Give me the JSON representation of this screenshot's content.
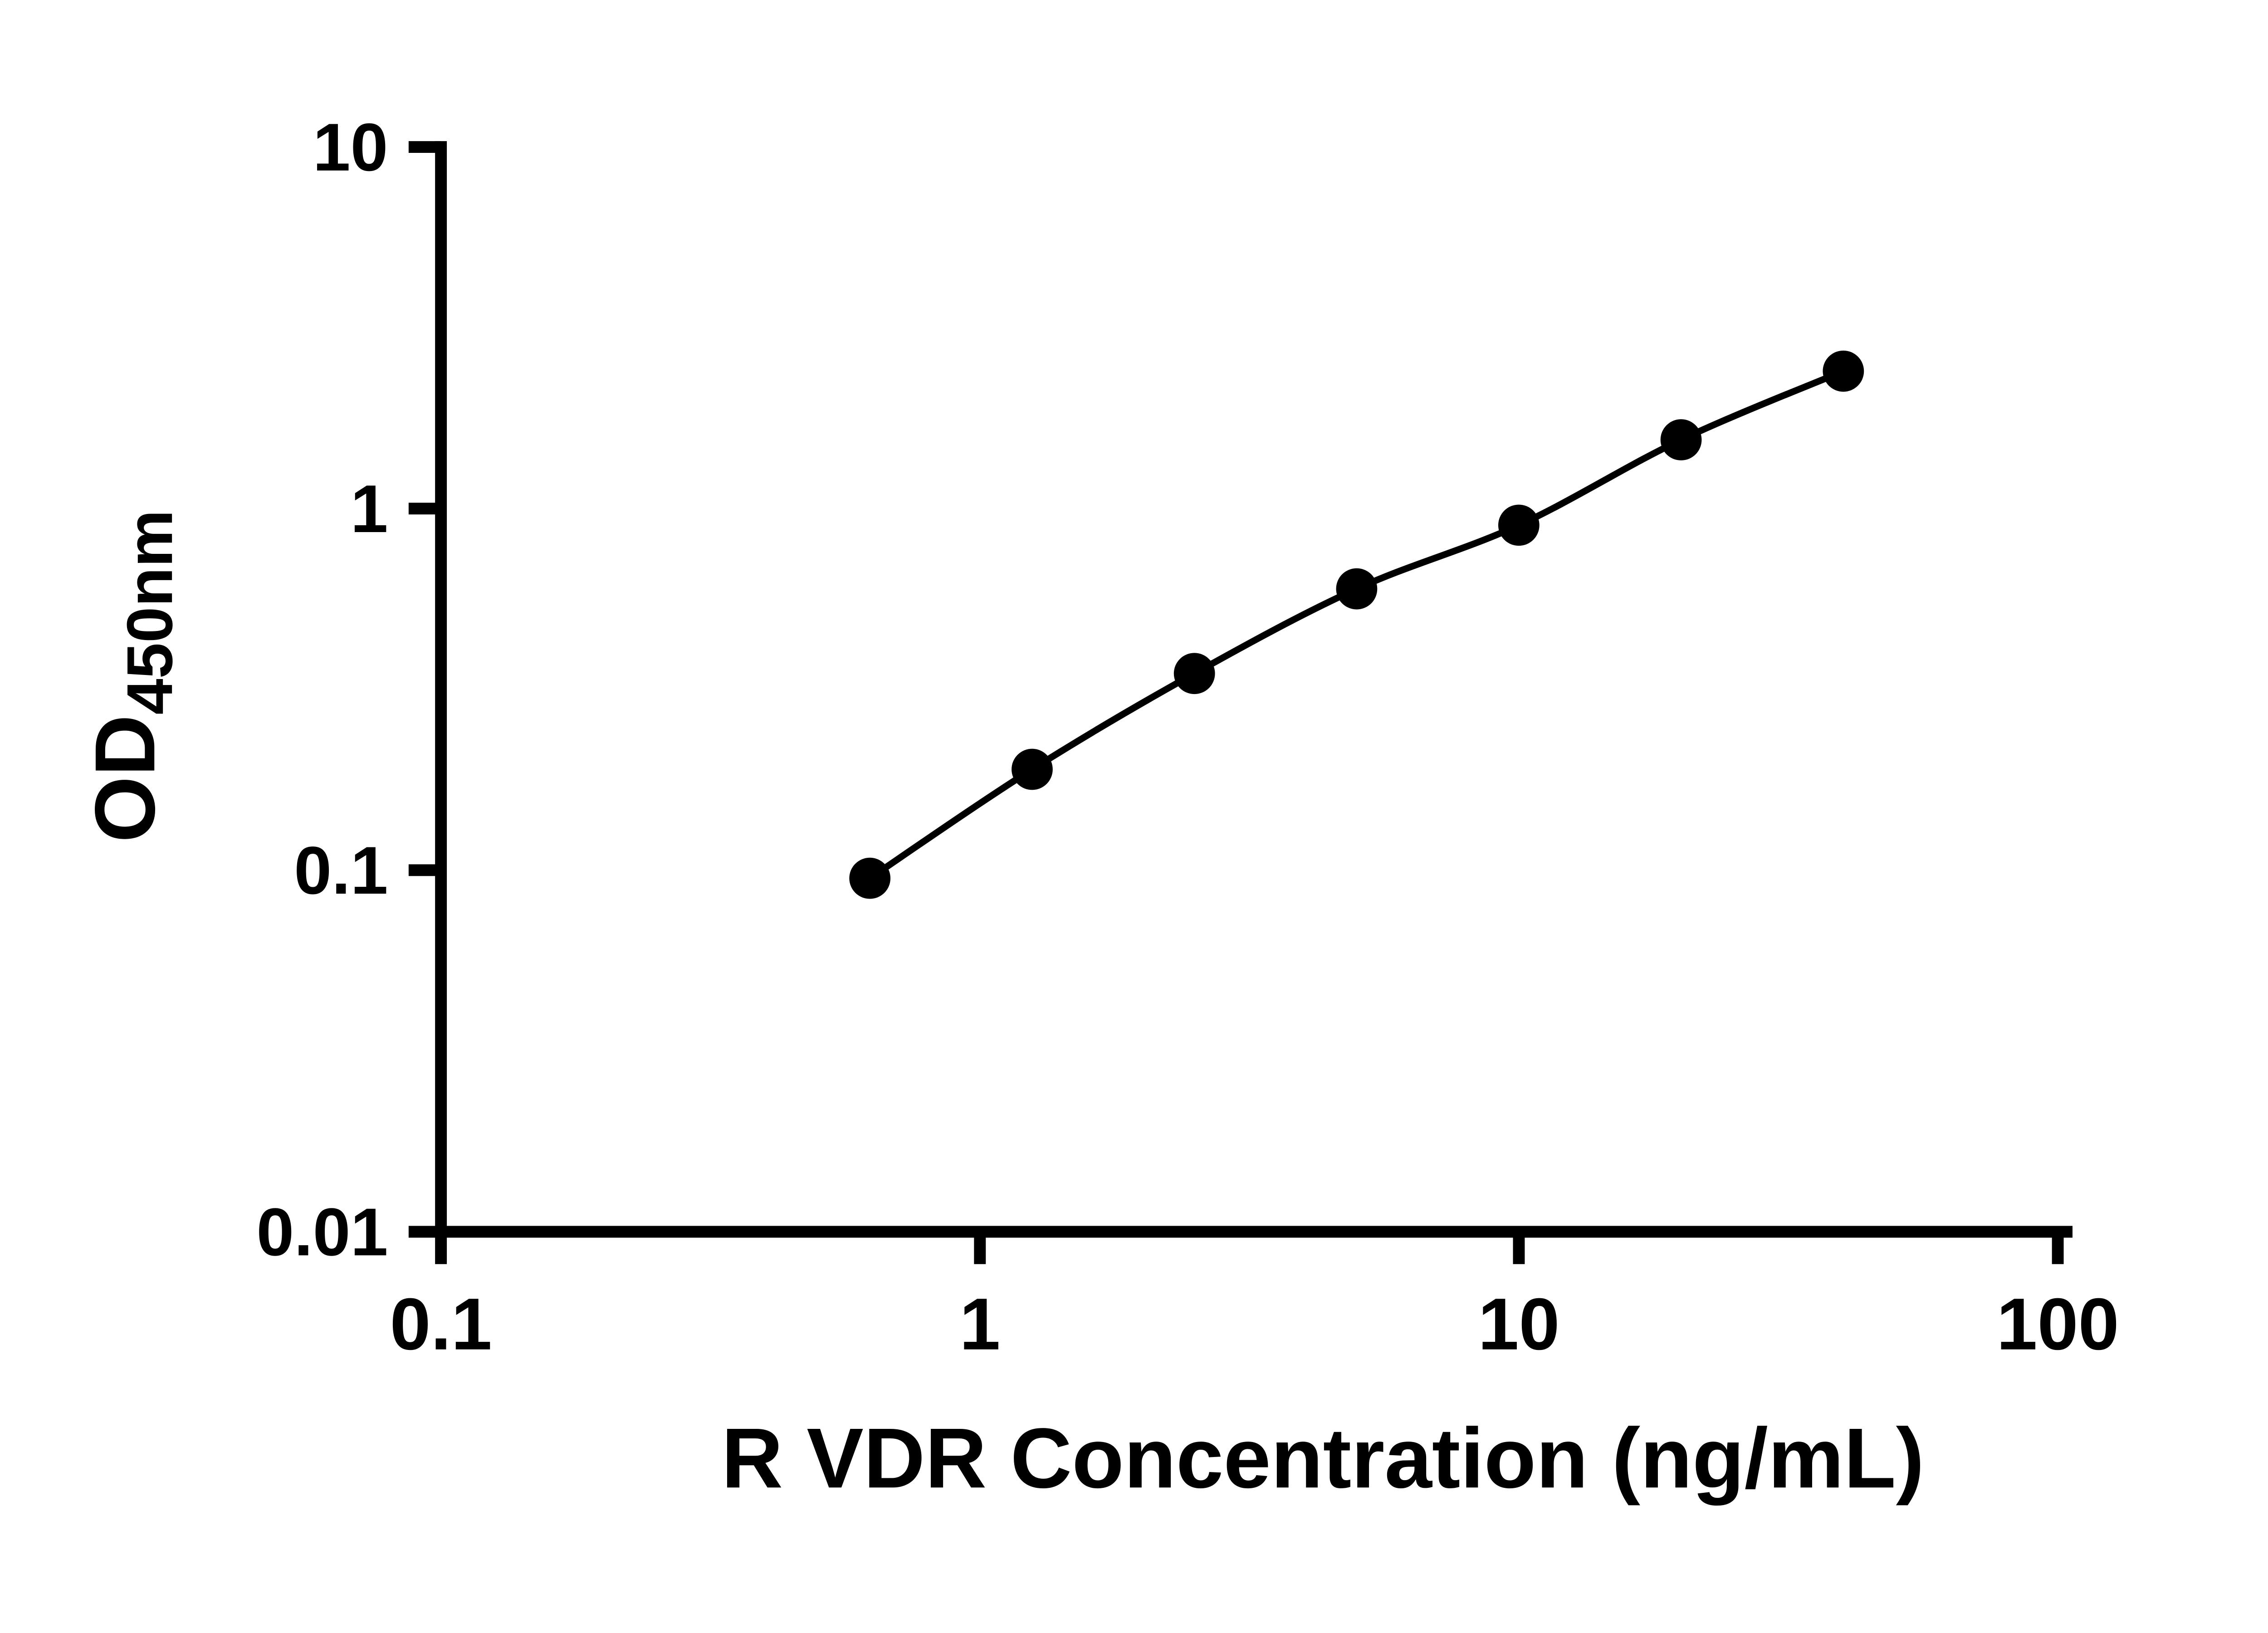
{
  "chart_data": {
    "type": "line",
    "title": "",
    "xlabel": "R VDR Concentration (ng/mL)",
    "ylabel": "OD450nm",
    "ylabel_main": "OD",
    "ylabel_sub": "450nm",
    "x_scale": "log10",
    "y_scale": "log10",
    "xlim": [
      0.1,
      100
    ],
    "ylim": [
      0.01,
      10
    ],
    "x": [
      0.625,
      1.25,
      2.5,
      5,
      10,
      20,
      40
    ],
    "y": [
      0.095,
      0.19,
      0.35,
      0.6,
      0.9,
      1.55,
      2.4
    ],
    "x_ticks": [
      {
        "value": 0.1,
        "label": "0.1"
      },
      {
        "value": 1,
        "label": "1"
      },
      {
        "value": 10,
        "label": "10"
      },
      {
        "value": 100,
        "label": "100"
      }
    ],
    "y_ticks": [
      {
        "value": 0.01,
        "label": "0.01"
      },
      {
        "value": 0.1,
        "label": "0.1"
      },
      {
        "value": 1,
        "label": "1"
      },
      {
        "value": 10,
        "label": "10"
      }
    ],
    "grid": false,
    "legend_position": "none",
    "axis_color": "#000000",
    "line_color": "#000000",
    "marker_color": "#000000",
    "background_color": "#ffffff"
  }
}
